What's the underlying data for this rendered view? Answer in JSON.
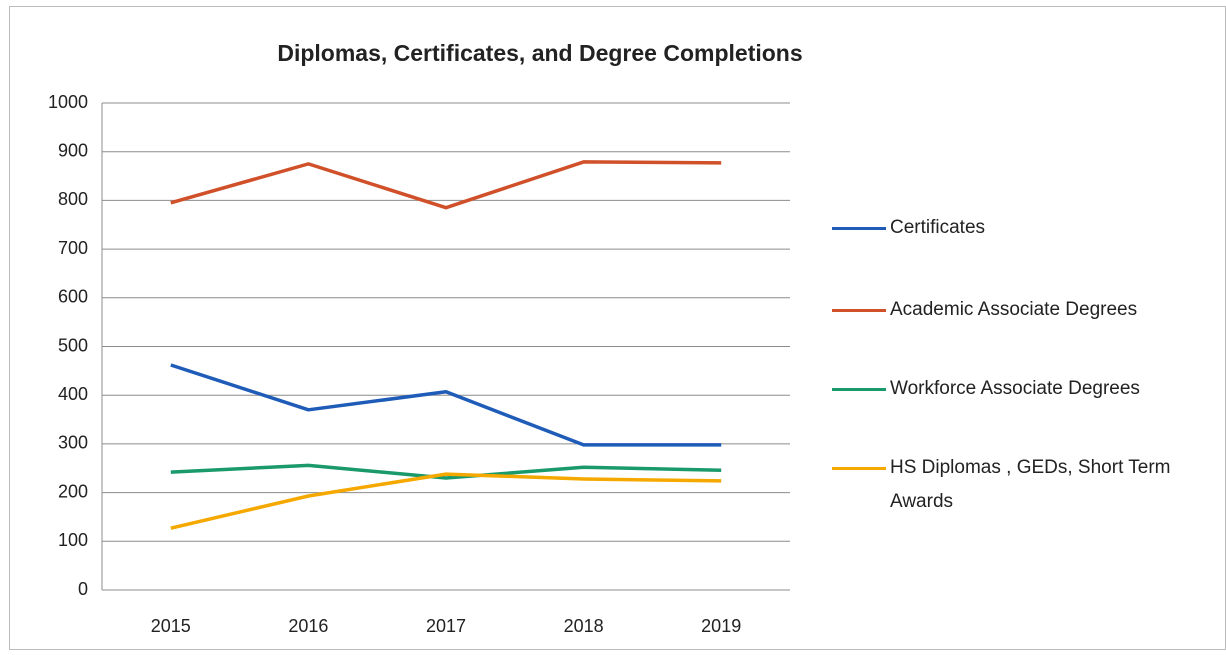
{
  "chart_data": {
    "type": "line",
    "title": "Diplomas, Certificates, and Degree Completions",
    "categories": [
      "2015",
      "2016",
      "2017",
      "2018",
      "2019"
    ],
    "series": [
      {
        "name": "Certificates",
        "color": "#1f5cb8",
        "values": [
          462,
          370,
          407,
          298,
          298
        ]
      },
      {
        "name": "Academic Associate Degrees",
        "color": "#d0502a",
        "values": [
          795,
          875,
          785,
          879,
          877
        ]
      },
      {
        "name": "Workforce Associate Degrees",
        "color": "#1a9a6a",
        "values": [
          242,
          256,
          230,
          252,
          246
        ]
      },
      {
        "name": "HS Diplomas , GEDs, Short Term Awards",
        "color": "#f5a800",
        "values": [
          127,
          193,
          238,
          228,
          224
        ]
      }
    ],
    "ylim": [
      0,
      1000
    ],
    "yticks": [
      0,
      100,
      200,
      300,
      400,
      500,
      600,
      700,
      800,
      900,
      1000
    ],
    "grid": true,
    "legend": "right"
  }
}
